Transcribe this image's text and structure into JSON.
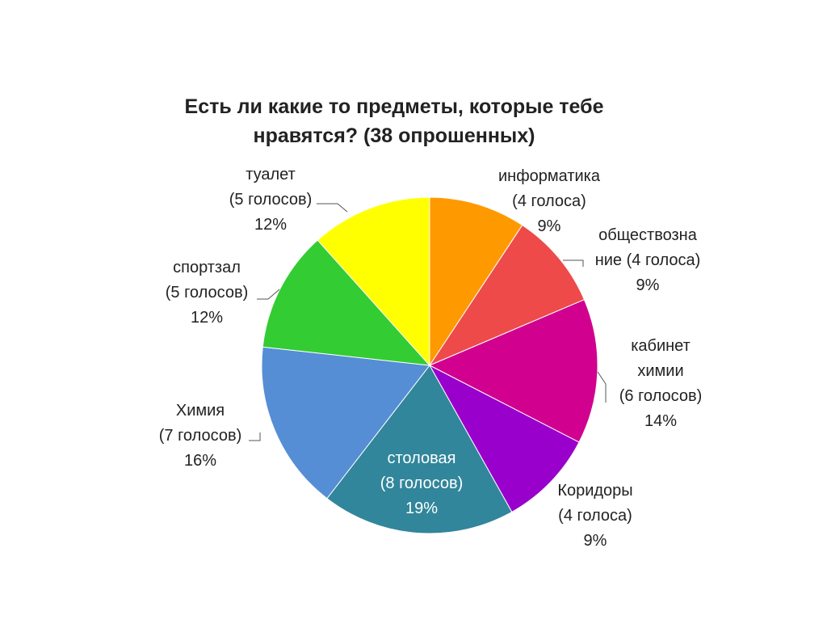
{
  "chart_data": {
    "type": "pie",
    "title_lines": [
      "Есть ли какие то предметы, которые тебе",
      "нравятся? (38 опрошенных)"
    ],
    "total_respondents": 38,
    "slices": [
      {
        "label_lines": [
          "информатика",
          "(4 голоса)",
          "9%"
        ],
        "value": 4,
        "percent": 9,
        "color": "#FF9900"
      },
      {
        "label_lines": [
          "обществозна",
          "ние (4 голоса)",
          "9%"
        ],
        "value": 4,
        "percent": 9,
        "color": "#EE4A4A"
      },
      {
        "label_lines": [
          "кабинет",
          "химии",
          "(6 голосов)",
          "14%"
        ],
        "value": 6,
        "percent": 14,
        "color": "#D1008F"
      },
      {
        "label_lines": [
          "Коридоры",
          "(4 голоса)",
          "9%"
        ],
        "value": 4,
        "percent": 9,
        "color": "#9900CC"
      },
      {
        "label_lines": [
          "столовая",
          "(8 голосов)",
          "19%"
        ],
        "value": 8,
        "percent": 19,
        "color": "#31869B"
      },
      {
        "label_lines": [
          "Химия",
          "(7 голосов)",
          "16%"
        ],
        "value": 7,
        "percent": 16,
        "color": "#558ED5"
      },
      {
        "label_lines": [
          "спортзал",
          "(5 голосов)",
          "12%"
        ],
        "value": 5,
        "percent": 12,
        "color": "#33CC33"
      },
      {
        "label_lines": [
          "туалет",
          "(5 голосов)",
          "12%"
        ],
        "value": 5,
        "percent": 12,
        "color": "#FFFF00"
      }
    ],
    "legend": "none",
    "data_labels": "outside-with-leader-lines"
  }
}
